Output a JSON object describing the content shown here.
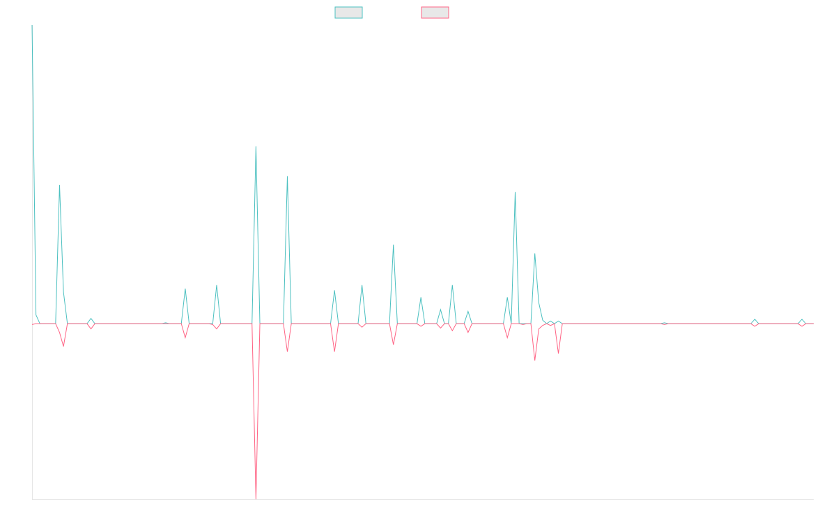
{
  "chart_data": {
    "type": "line",
    "title": "",
    "xlabel": "",
    "ylabel": "",
    "grid": false,
    "legend_position": "top-center",
    "x_count": 200,
    "ylim": [
      -100,
      170
    ],
    "series": [
      {
        "key": "up",
        "name": "",
        "color": "#4bc0c0",
        "fill": "#e8e8e8",
        "spikes": [
          {
            "x": 0,
            "y": 170
          },
          {
            "x": 1,
            "y": 5
          },
          {
            "x": 7,
            "y": 79
          },
          {
            "x": 8,
            "y": 18
          },
          {
            "x": 15,
            "y": 3
          },
          {
            "x": 34,
            "y": 0.5
          },
          {
            "x": 39,
            "y": 20
          },
          {
            "x": 47,
            "y": 22
          },
          {
            "x": 57,
            "y": 101
          },
          {
            "x": 65,
            "y": 84
          },
          {
            "x": 77,
            "y": 19
          },
          {
            "x": 84,
            "y": 22
          },
          {
            "x": 92,
            "y": 45
          },
          {
            "x": 99,
            "y": 15
          },
          {
            "x": 104,
            "y": 8
          },
          {
            "x": 107,
            "y": 22
          },
          {
            "x": 111,
            "y": 7
          },
          {
            "x": 121,
            "y": 15
          },
          {
            "x": 123,
            "y": 75
          },
          {
            "x": 128,
            "y": 40
          },
          {
            "x": 129,
            "y": 12
          },
          {
            "x": 130,
            "y": 2
          },
          {
            "x": 132,
            "y": 1.5
          },
          {
            "x": 134,
            "y": 1.5
          },
          {
            "x": 161,
            "y": 0.5
          },
          {
            "x": 184,
            "y": 2.5
          },
          {
            "x": 196,
            "y": 2.5
          }
        ]
      },
      {
        "key": "down",
        "name": "",
        "color": "#ff6384",
        "fill": "#e8e8e8",
        "spikes": [
          {
            "x": 0,
            "y": -0.5
          },
          {
            "x": 7,
            "y": -5
          },
          {
            "x": 8,
            "y": -13
          },
          {
            "x": 15,
            "y": -3
          },
          {
            "x": 39,
            "y": -8
          },
          {
            "x": 46,
            "y": -0.5
          },
          {
            "x": 47,
            "y": -3
          },
          {
            "x": 57,
            "y": -100
          },
          {
            "x": 65,
            "y": -16
          },
          {
            "x": 77,
            "y": -16
          },
          {
            "x": 84,
            "y": -2
          },
          {
            "x": 92,
            "y": -12
          },
          {
            "x": 99,
            "y": -1.5
          },
          {
            "x": 104,
            "y": -2.5
          },
          {
            "x": 107,
            "y": -4
          },
          {
            "x": 111,
            "y": -5
          },
          {
            "x": 121,
            "y": -8
          },
          {
            "x": 125,
            "y": -0.5
          },
          {
            "x": 128,
            "y": -21
          },
          {
            "x": 129,
            "y": -3
          },
          {
            "x": 130,
            "y": -1
          },
          {
            "x": 132,
            "y": -1
          },
          {
            "x": 134,
            "y": -17
          },
          {
            "x": 161,
            "y": -0.5
          },
          {
            "x": 184,
            "y": -1.5
          },
          {
            "x": 196,
            "y": -1.5
          }
        ]
      }
    ]
  }
}
